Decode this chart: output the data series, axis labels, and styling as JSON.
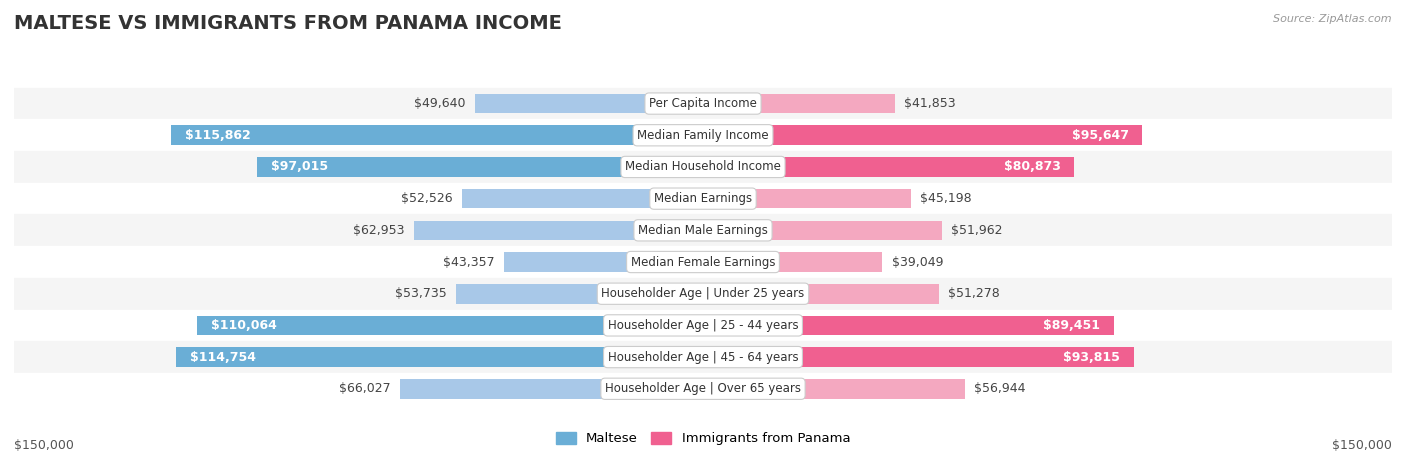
{
  "title": "MALTESE VS IMMIGRANTS FROM PANAMA INCOME",
  "source": "Source: ZipAtlas.com",
  "categories": [
    "Per Capita Income",
    "Median Family Income",
    "Median Household Income",
    "Median Earnings",
    "Median Male Earnings",
    "Median Female Earnings",
    "Householder Age | Under 25 years",
    "Householder Age | 25 - 44 years",
    "Householder Age | 45 - 64 years",
    "Householder Age | Over 65 years"
  ],
  "maltese_values": [
    49640,
    115862,
    97015,
    52526,
    62953,
    43357,
    53735,
    110064,
    114754,
    66027
  ],
  "panama_values": [
    41853,
    95647,
    80873,
    45198,
    51962,
    39049,
    51278,
    89451,
    93815,
    56944
  ],
  "maltese_color_light": "#a8c8e8",
  "maltese_color_strong": "#6aaed6",
  "panama_color_light": "#f4a8c0",
  "panama_color_strong": "#f06090",
  "row_bg_even": "#f5f5f5",
  "row_bg_odd": "#ffffff",
  "max_value": 150000,
  "xlabel_left": "$150,000",
  "xlabel_right": "$150,000",
  "legend_maltese": "Maltese",
  "legend_panama": "Immigrants from Panama",
  "label_fontsize": 9,
  "title_fontsize": 14,
  "category_fontsize": 8.5,
  "source_fontsize": 8,
  "inside_threshold_maltese": 80000,
  "inside_threshold_panama": 75000
}
